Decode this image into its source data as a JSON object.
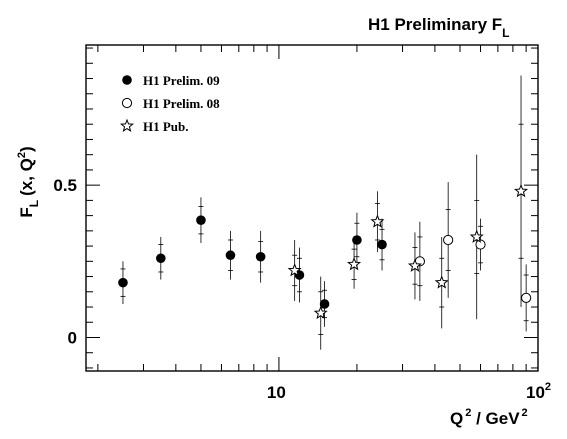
{
  "chart_data": {
    "type": "scatter",
    "title_main": "H1 Preliminary F",
    "title_sub": "L",
    "ylabel_main": "F",
    "ylabel_sub": "L",
    "ylabel_args": "(x, Q",
    "ylabel_sup": "2",
    "ylabel_close": ")",
    "xlabel_q": "Q",
    "xlabel_sup": "2",
    "xlabel_rest": " / GeV",
    "xlabel_sup2": "2",
    "x_scale": "log",
    "xlim": [
      1.8,
      100
    ],
    "ylim": [
      -0.11,
      0.96
    ],
    "x_ticks": [
      {
        "value": 10,
        "base": "10",
        "exp": ""
      },
      {
        "value": 100,
        "base": "10",
        "exp": "2"
      }
    ],
    "y_ticks": [
      {
        "value": 0,
        "label": "0"
      },
      {
        "value": 0.5,
        "label": "0.5"
      }
    ],
    "grid": false,
    "legend_position": "top-left",
    "series": [
      {
        "name": "H1 Prelim. 09",
        "marker": "filled-circle",
        "points": [
          {
            "x": 2.5,
            "y": 0.18,
            "err_in": 0.045,
            "err_tot": 0.07
          },
          {
            "x": 3.5,
            "y": 0.26,
            "err_in": 0.045,
            "err_tot": 0.07
          },
          {
            "x": 5.0,
            "y": 0.385,
            "err_in": 0.045,
            "err_tot": 0.075
          },
          {
            "x": 6.5,
            "y": 0.27,
            "err_in": 0.05,
            "err_tot": 0.08
          },
          {
            "x": 8.5,
            "y": 0.265,
            "err_in": 0.05,
            "err_tot": 0.085
          },
          {
            "x": 12.0,
            "y": 0.205,
            "err_in": 0.055,
            "err_tot": 0.09
          },
          {
            "x": 15.0,
            "y": 0.11,
            "err_in": 0.045,
            "err_tot": 0.075
          },
          {
            "x": 20.0,
            "y": 0.32,
            "err_in": 0.055,
            "err_tot": 0.09
          },
          {
            "x": 25.0,
            "y": 0.305,
            "err_in": 0.05,
            "err_tot": 0.085
          }
        ]
      },
      {
        "name": "H1 Prelim. 08",
        "marker": "open-circle",
        "points": [
          {
            "x": 35.0,
            "y": 0.25,
            "err_in": 0.08,
            "err_tot": 0.13
          },
          {
            "x": 45.0,
            "y": 0.32,
            "err_in": 0.1,
            "err_tot": 0.19
          },
          {
            "x": 60.0,
            "y": 0.305,
            "err_in": 0.06,
            "err_tot": 0.085
          },
          {
            "x": 90.0,
            "y": 0.13,
            "err_in": 0.075,
            "err_tot": 0.11
          }
        ]
      },
      {
        "name": "H1 Pub.",
        "marker": "open-star",
        "points": [
          {
            "x": 11.5,
            "y": 0.22,
            "err_in": 0.05,
            "err_tot": 0.1
          },
          {
            "x": 14.5,
            "y": 0.08,
            "err_in": 0.07,
            "err_tot": 0.12
          },
          {
            "x": 19.5,
            "y": 0.24,
            "err_in": 0.05,
            "err_tot": 0.08
          },
          {
            "x": 24.0,
            "y": 0.38,
            "err_in": 0.06,
            "err_tot": 0.1
          },
          {
            "x": 33.5,
            "y": 0.235,
            "err_in": 0.06,
            "err_tot": 0.11
          },
          {
            "x": 42.5,
            "y": 0.18,
            "err_in": 0.08,
            "err_tot": 0.15
          },
          {
            "x": 58.0,
            "y": 0.33,
            "err_in": 0.12,
            "err_tot": 0.27
          },
          {
            "x": 86.0,
            "y": 0.48,
            "err_in": 0.22,
            "err_tot": 0.38
          }
        ]
      }
    ]
  }
}
